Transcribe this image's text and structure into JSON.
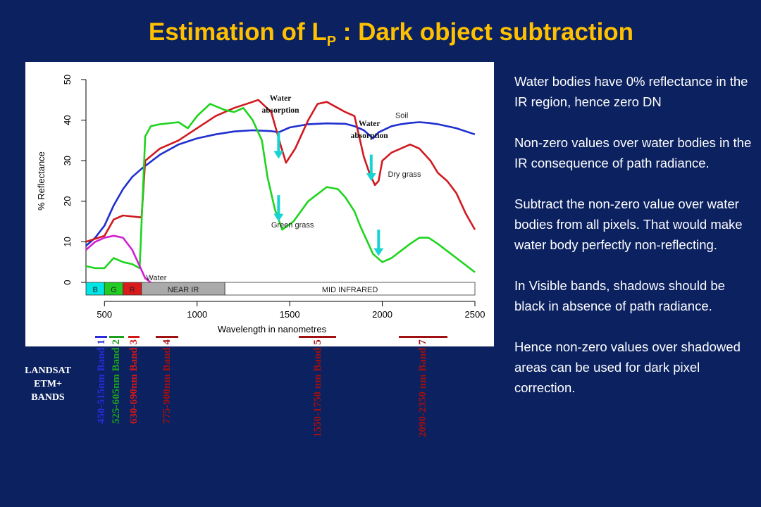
{
  "title": {
    "main": "Estimation of L",
    "subscript": "P",
    "rest": " : Dark object subtraction"
  },
  "colors": {
    "background": "#0b2160",
    "title": "#ffc000",
    "text": "#ffffff",
    "arrow": "#19d3d3"
  },
  "chart_data": {
    "type": "line",
    "xlabel": "Wavelength in nanometres",
    "ylabel": "% Reflectance",
    "xlim": [
      400,
      2500
    ],
    "ylim": [
      0,
      50
    ],
    "xticks": [
      "500",
      "1000",
      "1500",
      "2000",
      "2500"
    ],
    "yticks": [
      "0",
      "10",
      "20",
      "30",
      "40",
      "50"
    ],
    "grid": false,
    "series": [
      {
        "name": "Soil",
        "color": "#1f2fcf",
        "points": [
          [
            400,
            9
          ],
          [
            450,
            11
          ],
          [
            500,
            14
          ],
          [
            550,
            19
          ],
          [
            600,
            23
          ],
          [
            650,
            26
          ],
          [
            700,
            28
          ],
          [
            800,
            31.5
          ],
          [
            900,
            34
          ],
          [
            1000,
            35.5
          ],
          [
            1100,
            36.5
          ],
          [
            1200,
            37.2
          ],
          [
            1300,
            37.5
          ],
          [
            1400,
            37.3
          ],
          [
            1440,
            37
          ],
          [
            1500,
            38.2
          ],
          [
            1600,
            39
          ],
          [
            1700,
            39.2
          ],
          [
            1800,
            39.1
          ],
          [
            1850,
            38.5
          ],
          [
            1900,
            37.5
          ],
          [
            1950,
            35.5
          ],
          [
            1980,
            37
          ],
          [
            2050,
            38.5
          ],
          [
            2100,
            39
          ],
          [
            2150,
            39.3
          ],
          [
            2200,
            39.5
          ],
          [
            2250,
            39.3
          ],
          [
            2300,
            39
          ],
          [
            2400,
            38
          ],
          [
            2500,
            36.5
          ]
        ]
      },
      {
        "name": "Dry grass",
        "color": "#d0191f",
        "points": [
          [
            400,
            10
          ],
          [
            500,
            11.5
          ],
          [
            550,
            15.5
          ],
          [
            600,
            16.5
          ],
          [
            700,
            16
          ],
          [
            720,
            30
          ],
          [
            800,
            33
          ],
          [
            900,
            35
          ],
          [
            1000,
            38
          ],
          [
            1100,
            41
          ],
          [
            1200,
            43
          ],
          [
            1300,
            44.5
          ],
          [
            1330,
            45
          ],
          [
            1400,
            42
          ],
          [
            1450,
            34
          ],
          [
            1480,
            29.5
          ],
          [
            1530,
            33
          ],
          [
            1600,
            40
          ],
          [
            1650,
            44
          ],
          [
            1700,
            44.5
          ],
          [
            1800,
            42
          ],
          [
            1850,
            41
          ],
          [
            1900,
            31
          ],
          [
            1930,
            27
          ],
          [
            1960,
            24
          ],
          [
            1980,
            25
          ],
          [
            2000,
            30
          ],
          [
            2050,
            32
          ],
          [
            2100,
            33
          ],
          [
            2150,
            34
          ],
          [
            2200,
            33
          ],
          [
            2260,
            30
          ],
          [
            2300,
            27
          ],
          [
            2350,
            25
          ],
          [
            2400,
            22
          ],
          [
            2450,
            17
          ],
          [
            2500,
            13
          ]
        ]
      },
      {
        "name": "Green grass",
        "color": "#1ed41e",
        "points": [
          [
            400,
            4
          ],
          [
            450,
            3.5
          ],
          [
            500,
            3.5
          ],
          [
            550,
            6
          ],
          [
            600,
            5
          ],
          [
            650,
            4.5
          ],
          [
            690,
            3.5
          ],
          [
            720,
            36
          ],
          [
            750,
            38.5
          ],
          [
            800,
            39
          ],
          [
            900,
            39.5
          ],
          [
            950,
            38
          ],
          [
            1000,
            41
          ],
          [
            1070,
            44
          ],
          [
            1150,
            42.5
          ],
          [
            1200,
            42
          ],
          [
            1250,
            43
          ],
          [
            1300,
            40
          ],
          [
            1350,
            35
          ],
          [
            1380,
            26
          ],
          [
            1420,
            18
          ],
          [
            1460,
            13
          ],
          [
            1520,
            15
          ],
          [
            1600,
            20
          ],
          [
            1700,
            23.5
          ],
          [
            1760,
            23
          ],
          [
            1800,
            21
          ],
          [
            1850,
            17.5
          ],
          [
            1880,
            14
          ],
          [
            1950,
            7
          ],
          [
            2000,
            5
          ],
          [
            2050,
            6
          ],
          [
            2150,
            9.5
          ],
          [
            2200,
            11
          ],
          [
            2250,
            11
          ],
          [
            2300,
            9.5
          ],
          [
            2400,
            6
          ],
          [
            2500,
            2.5
          ]
        ]
      },
      {
        "name": "Water",
        "color": "#d21ed2",
        "points": [
          [
            400,
            8
          ],
          [
            450,
            10
          ],
          [
            500,
            11
          ],
          [
            550,
            11.5
          ],
          [
            600,
            11
          ],
          [
            650,
            8
          ],
          [
            700,
            3
          ],
          [
            720,
            1
          ],
          [
            750,
            0
          ]
        ]
      }
    ],
    "series_labels": [
      {
        "text": "Soil",
        "series": "Soil",
        "x": 2070,
        "y": 40.5
      },
      {
        "text": "Dry grass",
        "series": "Dry grass",
        "x": 2030,
        "y": 26
      },
      {
        "text": "Green grass",
        "series": "Green grass",
        "x": 1400,
        "y": 13.5
      },
      {
        "text": "Water",
        "series": "Water",
        "x": 725,
        "y": 0.5
      }
    ],
    "bands": [
      {
        "label": "B",
        "from": 400,
        "to": 500,
        "color": "#00e6e6"
      },
      {
        "label": "G",
        "from": 500,
        "to": 600,
        "color": "#22cc22"
      },
      {
        "label": "R",
        "from": 600,
        "to": 700,
        "color": "#dd1a1a"
      },
      {
        "label": "NEAR IR",
        "from": 700,
        "to": 1150,
        "color": "#aaaaaa"
      },
      {
        "label": "MID INFRARED",
        "from": 1150,
        "to": 2500,
        "color": "#ffffff"
      }
    ],
    "annotations": [
      {
        "lines": [
          "Water",
          "absorption"
        ],
        "x": 1450,
        "y": 44.8
      },
      {
        "lines": [
          "Water",
          "absorption"
        ],
        "x": 1930,
        "y": 38.5
      }
    ],
    "arrows": [
      {
        "x": 1440,
        "y_from": 37,
        "y_to": 30.5
      },
      {
        "x": 1440,
        "y_from": 21.5,
        "y_to": 15
      },
      {
        "x": 1940,
        "y_from": 31.5,
        "y_to": 25
      },
      {
        "x": 1980,
        "y_from": 13,
        "y_to": 6.5
      }
    ]
  },
  "notes": [
    "Water bodies have 0% reflectance in the IR region, hence zero DN",
    "Non-zero values over water bodies in the IR consequence of path radiance.",
    "Subtract the non-zero value over water bodies from all pixels.  That would make water body perfectly non-reflecting.",
    "In Visible bands, shadows should be black in absence of path radiance.",
    "Hence non-zero values over shadowed areas can be used for dark pixel correction."
  ],
  "landsat": {
    "label_lines": [
      "LANDSAT",
      "ETM+",
      "BANDS"
    ],
    "bands": [
      {
        "label": "450-515nm Band 1",
        "from": 450,
        "to": 515,
        "color": "#2a2ad8"
      },
      {
        "label": "525-605nm Band 2",
        "from": 525,
        "to": 605,
        "color": "#1aa01a"
      },
      {
        "label": "630-690nm Band 3",
        "from": 630,
        "to": 690,
        "color": "#d01818"
      },
      {
        "label": "775-900nm Band 4",
        "from": 775,
        "to": 900,
        "color": "#a01010"
      },
      {
        "label": "1550-1750 nm Band 5",
        "from": 1550,
        "to": 1750,
        "color": "#a01010"
      },
      {
        "label": "2090-2350 nm Band 7",
        "from": 2090,
        "to": 2350,
        "color": "#a01010"
      }
    ]
  }
}
